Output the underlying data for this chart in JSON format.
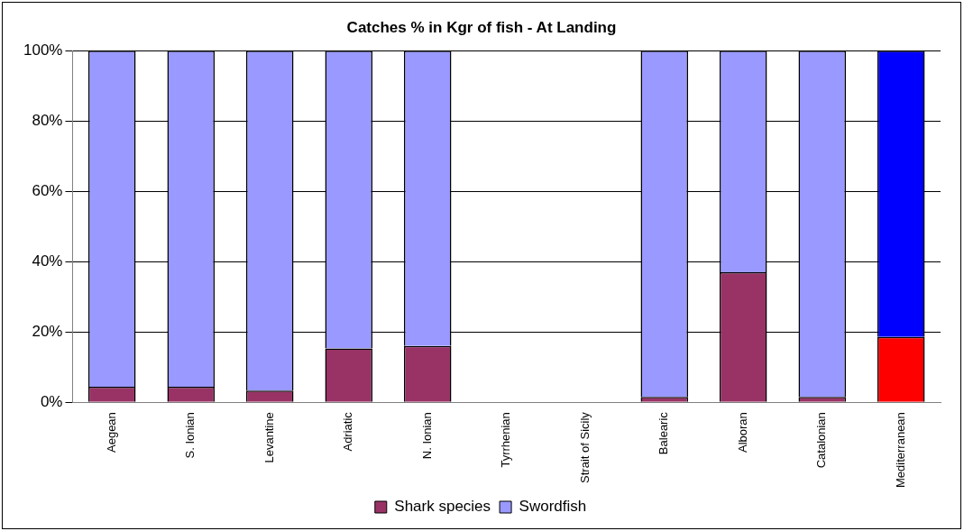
{
  "chart_data": {
    "type": "bar",
    "title": "Catches % in Kgr of fish - At Landing",
    "stacked": true,
    "categories": [
      "Aegean",
      "S. Ionian",
      "Levantine",
      "Adriatic",
      "N. Ionian",
      "Tyrrhenian",
      "Strait of Sicily",
      "Balearic",
      "Alboran",
      "Catalonian",
      "Mediterranean"
    ],
    "series": [
      {
        "name": "Shark species",
        "color": "#993366",
        "colors": [
          "#993366",
          "#993366",
          "#993366",
          "#993366",
          "#993366",
          "#993366",
          "#993366",
          "#993366",
          "#993366",
          "#993366",
          "#ff0000"
        ],
        "values": [
          4.4,
          4.4,
          3.3,
          15.3,
          16,
          null,
          null,
          1.5,
          37,
          1.5,
          18.6
        ]
      },
      {
        "name": "Swordfish",
        "color": "#9999ff",
        "colors": [
          "#9999ff",
          "#9999ff",
          "#9999ff",
          "#9999ff",
          "#9999ff",
          "#9999ff",
          "#9999ff",
          "#9999ff",
          "#9999ff",
          "#9999ff",
          "#0000ff"
        ],
        "values": [
          95.6,
          95.6,
          96.7,
          84.7,
          84,
          null,
          null,
          98.5,
          63,
          98.5,
          81.4
        ]
      }
    ],
    "ylim": [
      0,
      100
    ],
    "yticks": [
      {
        "value": 0,
        "label": "0%"
      },
      {
        "value": 20,
        "label": "20%"
      },
      {
        "value": 40,
        "label": "40%"
      },
      {
        "value": 60,
        "label": "60%"
      },
      {
        "value": 80,
        "label": "80%"
      },
      {
        "value": 100,
        "label": "100%"
      }
    ],
    "grid": "y",
    "legend": "bottom"
  }
}
